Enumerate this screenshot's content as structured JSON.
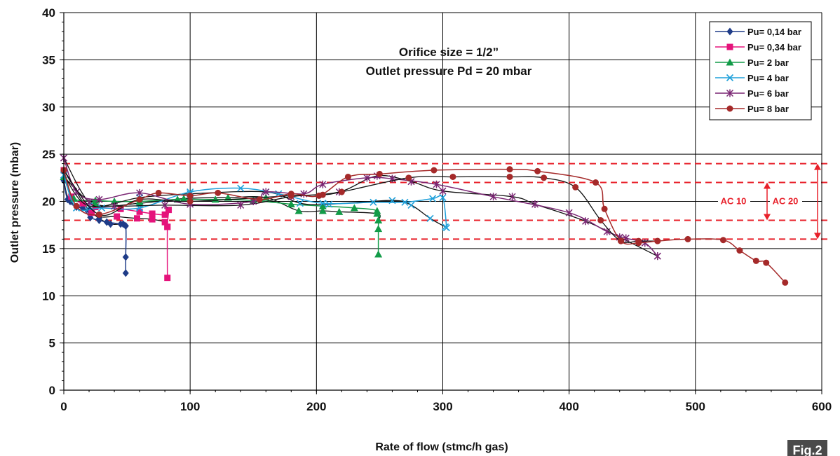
{
  "figure_label": "Fig.2",
  "chart_data": {
    "type": "line",
    "xlabel": "Rate of flow (stmc/h gas)",
    "ylabel": "Outlet pressure (mbar)",
    "xlim": [
      0,
      600
    ],
    "ylim": [
      0,
      40
    ],
    "x_ticks": [
      "0",
      "100",
      "200",
      "300",
      "400",
      "500",
      "600"
    ],
    "y_ticks": [
      "0",
      "5",
      "10",
      "15",
      "20",
      "25",
      "30",
      "35",
      "40"
    ],
    "grid": true,
    "legend_position": "top-right",
    "annotations": {
      "line1": "Orifice size = 1/2”",
      "line2": "Outlet pressure Pd = 20 mbar"
    },
    "reference_lines": {
      "color": "#e8202a",
      "y_values": [
        24,
        22,
        18,
        16
      ],
      "bands": [
        {
          "label": "AC 10",
          "from": 18,
          "to": 22
        },
        {
          "label": "AC 20",
          "from": 16,
          "to": 24
        }
      ]
    },
    "series": [
      {
        "name": "Pu= 0,14 bar",
        "color": "#1f3c88",
        "marker": "diamond",
        "rising": [
          [
            0,
            22.2
          ],
          [
            3,
            20.2
          ],
          [
            10,
            19.4
          ],
          [
            15,
            19.3
          ],
          [
            21,
            18.3
          ],
          [
            28,
            18
          ],
          [
            34,
            17.8
          ],
          [
            45,
            17.6
          ],
          [
            49,
            17.4
          ],
          [
            49,
            14.1
          ],
          [
            49,
            12.4
          ]
        ],
        "falling": [
          [
            0,
            22.2
          ],
          [
            5,
            20
          ],
          [
            20,
            19
          ],
          [
            28,
            18.2
          ],
          [
            37,
            17.6
          ],
          [
            47,
            17.6
          ],
          [
            49,
            17.4
          ]
        ]
      },
      {
        "name": "Pu= 0,34 bar",
        "color": "#e5137b",
        "marker": "square",
        "rising": [
          [
            0,
            23.3
          ],
          [
            6,
            20.5
          ],
          [
            15,
            19.8
          ],
          [
            25,
            19.4
          ],
          [
            45,
            19.2
          ],
          [
            60,
            18.9
          ],
          [
            70,
            18.7
          ],
          [
            80,
            18.6
          ],
          [
            83,
            19.1
          ],
          [
            82,
            17.3
          ],
          [
            82,
            11.9
          ]
        ],
        "falling": [
          [
            0,
            23.3
          ],
          [
            22,
            18.8
          ],
          [
            42,
            18.4
          ],
          [
            58,
            18.2
          ],
          [
            70,
            18.1
          ],
          [
            80,
            17.8
          ],
          [
            82,
            17.3
          ]
        ]
      },
      {
        "name": "Pu= 2 bar",
        "color": "#129b48",
        "marker": "triangle",
        "rising": [
          [
            0,
            22.6
          ],
          [
            8,
            20.3
          ],
          [
            25,
            20.1
          ],
          [
            40,
            20
          ],
          [
            60,
            20
          ],
          [
            90,
            20.2
          ],
          [
            120,
            20.2
          ],
          [
            150,
            20.1
          ],
          [
            180,
            19.7
          ],
          [
            205,
            19.5
          ],
          [
            230,
            19.3
          ],
          [
            248,
            19
          ],
          [
            249,
            18
          ],
          [
            249,
            17.1
          ],
          [
            249,
            14.4
          ]
        ],
        "falling": [
          [
            0,
            22.6
          ],
          [
            25,
            19.7
          ],
          [
            60,
            19.8
          ],
          [
            95,
            20.3
          ],
          [
            130,
            20.4
          ],
          [
            160,
            20.4
          ],
          [
            186,
            19
          ],
          [
            205,
            19
          ],
          [
            218,
            18.9
          ],
          [
            248,
            18.7
          ],
          [
            249,
            18
          ]
        ]
      },
      {
        "name": "Pu= 4 bar",
        "color": "#1fa0da",
        "marker": "x",
        "rising": [
          [
            0,
            22.8
          ],
          [
            10,
            19.3
          ],
          [
            30,
            19.3
          ],
          [
            60,
            19.3
          ],
          [
            100,
            21
          ],
          [
            140,
            21.4
          ],
          [
            170,
            20.8
          ],
          [
            205,
            19.8
          ],
          [
            245,
            19.9
          ],
          [
            270,
            19.9
          ],
          [
            292,
            20.3
          ],
          [
            300,
            20.4
          ],
          [
            303,
            17.2
          ]
        ],
        "falling": [
          [
            0,
            22.8
          ],
          [
            20,
            19.5
          ],
          [
            60,
            20.4
          ],
          [
            100,
            20.8
          ],
          [
            160,
            21
          ],
          [
            187,
            19.8
          ],
          [
            210,
            19.7
          ],
          [
            260,
            20.1
          ],
          [
            275,
            19.6
          ],
          [
            290,
            18.2
          ],
          [
            302,
            17.3
          ]
        ]
      },
      {
        "name": "Pu= 6 bar",
        "color": "#7a2673",
        "marker": "star",
        "rising": [
          [
            0,
            24.6
          ],
          [
            10,
            21
          ],
          [
            28,
            20.2
          ],
          [
            60,
            20.9
          ],
          [
            100,
            19.7
          ],
          [
            150,
            20
          ],
          [
            160,
            21
          ],
          [
            190,
            20.8
          ],
          [
            205,
            21.8
          ],
          [
            240,
            22.5
          ],
          [
            260,
            22.4
          ],
          [
            295,
            21.8
          ],
          [
            340,
            20.5
          ],
          [
            400,
            18.8
          ],
          [
            430,
            16.8
          ],
          [
            445,
            16.1
          ],
          [
            460,
            15.6
          ],
          [
            470,
            14.2
          ]
        ],
        "falling": [
          [
            0,
            24.6
          ],
          [
            20,
            19.9
          ],
          [
            40,
            19.5
          ],
          [
            80,
            19.6
          ],
          [
            140,
            19.6
          ],
          [
            180,
            20.5
          ],
          [
            218,
            21
          ],
          [
            248,
            22.7
          ],
          [
            275,
            22.1
          ],
          [
            300,
            21.1
          ],
          [
            355,
            20.5
          ],
          [
            373,
            19.7
          ],
          [
            413,
            17.9
          ],
          [
            440,
            16.2
          ],
          [
            470,
            14.2
          ]
        ]
      },
      {
        "name": "Pu= 8 bar",
        "color": "#a52a2a",
        "marker": "circle",
        "rising": [
          [
            0,
            23.3
          ],
          [
            10,
            19.5
          ],
          [
            28,
            18.6
          ],
          [
            60,
            20.2
          ],
          [
            75,
            20.9
          ],
          [
            100,
            20.6
          ],
          [
            122,
            20.9
          ],
          [
            155,
            20.2
          ],
          [
            180,
            20.8
          ],
          [
            202,
            20.6
          ],
          [
            225,
            22.6
          ],
          [
            250,
            22.9
          ],
          [
            293,
            23.3
          ],
          [
            353,
            23.4
          ],
          [
            375,
            23.2
          ],
          [
            421,
            22
          ],
          [
            428,
            19.2
          ],
          [
            441,
            15.8
          ],
          [
            455,
            15.6
          ],
          [
            470,
            15.8
          ],
          [
            494,
            16
          ],
          [
            522,
            15.9
          ],
          [
            535,
            14.8
          ],
          [
            548,
            13.7
          ],
          [
            556,
            13.5
          ],
          [
            571,
            11.4
          ]
        ],
        "falling": [
          [
            0,
            23.3
          ],
          [
            28,
            18.6
          ],
          [
            60,
            20.2
          ],
          [
            100,
            20
          ],
          [
            180,
            20.6
          ],
          [
            205,
            20.7
          ],
          [
            220,
            21
          ],
          [
            273,
            22.5
          ],
          [
            308,
            22.6
          ],
          [
            353,
            22.6
          ],
          [
            380,
            22.5
          ],
          [
            405,
            21.5
          ],
          [
            425,
            18
          ],
          [
            441,
            15.8
          ],
          [
            455,
            15.8
          ],
          [
            470,
            15.8
          ]
        ]
      }
    ]
  }
}
